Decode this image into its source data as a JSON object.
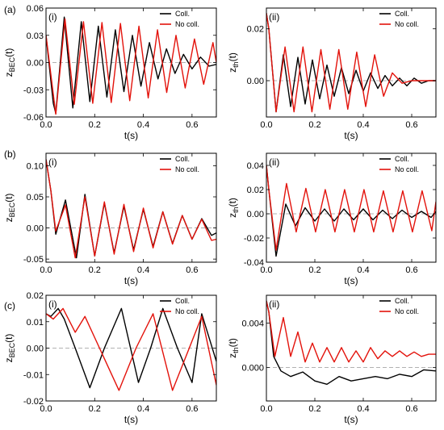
{
  "figure": {
    "row_labels": [
      "(a)",
      "(b)",
      "(c)"
    ]
  },
  "chart_data": [
    {
      "type": "line",
      "row": 0,
      "col": 0,
      "panel_label": "(i)",
      "xlabel": "t(s)",
      "ylabel_main": "z",
      "ylabel_sub": "BEC",
      "ylabel_tail": "(t)",
      "xlim": [
        0,
        0.7
      ],
      "ylim": [
        -0.06,
        0.06
      ],
      "xticks": [
        0.0,
        0.2,
        0.4,
        0.6
      ],
      "xtick_labels": [
        "0.0",
        "0.2",
        "0.4",
        "0.6"
      ],
      "yticks": [
        -0.06,
        -0.03,
        0.0,
        0.03,
        0.06
      ],
      "ytick_labels": [
        "-0.06",
        "-0.03",
        "0.00",
        "0.03",
        "0.06"
      ],
      "legend": [
        "Coll.",
        "No coll."
      ],
      "legend_position": "top-right",
      "series": [
        {
          "name": "Coll.",
          "color": "#000000",
          "x": [
            0.0,
            0.03,
            0.04,
            0.075,
            0.11,
            0.145,
            0.18,
            0.215,
            0.25,
            0.285,
            0.32,
            0.355,
            0.39,
            0.425,
            0.46,
            0.495,
            0.53,
            0.565,
            0.6,
            0.635,
            0.67,
            0.7
          ],
          "y": [
            0.03,
            -0.045,
            -0.056,
            0.05,
            -0.05,
            0.045,
            -0.043,
            0.04,
            -0.038,
            0.036,
            -0.032,
            0.03,
            -0.026,
            0.022,
            -0.018,
            0.015,
            -0.012,
            0.009,
            -0.007,
            0.006,
            -0.004,
            -0.002
          ]
        },
        {
          "name": "No coll.",
          "color": "#e3120b",
          "x": [
            0.0,
            0.04,
            0.078,
            0.116,
            0.154,
            0.192,
            0.23,
            0.268,
            0.306,
            0.344,
            0.382,
            0.42,
            0.458,
            0.496,
            0.534,
            0.572,
            0.61,
            0.648,
            0.686,
            0.7
          ],
          "y": [
            0.03,
            -0.057,
            0.048,
            -0.046,
            0.045,
            -0.045,
            0.044,
            -0.044,
            0.043,
            -0.042,
            0.04,
            -0.039,
            0.036,
            -0.033,
            0.03,
            -0.028,
            0.026,
            -0.024,
            0.022,
            0.0
          ]
        }
      ]
    },
    {
      "type": "line",
      "row": 0,
      "col": 1,
      "panel_label": "(ii)",
      "xlabel": "t(s)",
      "ylabel_main": "z",
      "ylabel_sub": "th",
      "ylabel_tail": "(t)",
      "xlim": [
        0,
        0.7
      ],
      "ylim": [
        -0.014,
        0.028
      ],
      "xticks": [
        0.0,
        0.2,
        0.4,
        0.6
      ],
      "xtick_labels": [
        "0.0",
        "0.2",
        "0.4",
        "0.6"
      ],
      "yticks": [
        0.0,
        0.02
      ],
      "ytick_labels": [
        "0.00",
        "0.02"
      ],
      "legend": [
        "Coll.",
        "No coll."
      ],
      "legend_position": "top-right",
      "series": [
        {
          "name": "Coll.",
          "color": "#000000",
          "x": [
            0.0,
            0.01,
            0.04,
            0.07,
            0.1,
            0.13,
            0.16,
            0.19,
            0.22,
            0.25,
            0.28,
            0.31,
            0.34,
            0.37,
            0.4,
            0.43,
            0.46,
            0.49,
            0.52,
            0.55,
            0.58,
            0.61,
            0.64,
            0.67,
            0.7
          ],
          "y": [
            0.026,
            0.02,
            -0.012,
            0.01,
            -0.01,
            0.009,
            -0.009,
            0.008,
            -0.007,
            0.006,
            -0.006,
            0.005,
            -0.005,
            0.004,
            -0.004,
            0.003,
            -0.003,
            0.002,
            -0.002,
            0.001,
            -0.002,
            0.001,
            -0.001,
            0.0,
            0.0
          ]
        },
        {
          "name": "No coll.",
          "color": "#e3120b",
          "x": [
            0.0,
            0.01,
            0.04,
            0.077,
            0.114,
            0.151,
            0.188,
            0.225,
            0.262,
            0.299,
            0.336,
            0.373,
            0.41,
            0.447,
            0.484,
            0.52,
            0.56,
            0.6,
            0.64,
            0.68,
            0.7
          ],
          "y": [
            0.026,
            0.02,
            -0.012,
            0.013,
            -0.012,
            0.013,
            -0.012,
            0.012,
            -0.011,
            0.012,
            -0.011,
            0.011,
            -0.01,
            0.01,
            -0.006,
            0.003,
            -0.001,
            0.0,
            0.0,
            0.0,
            0.0
          ]
        }
      ]
    },
    {
      "type": "line",
      "row": 1,
      "col": 0,
      "panel_label": "(i)",
      "xlabel": "t(s)",
      "ylabel_main": "z",
      "ylabel_sub": "BEC",
      "ylabel_tail": "(t)",
      "xlim": [
        0,
        0.7
      ],
      "ylim": [
        -0.055,
        0.12
      ],
      "xticks": [
        0.0,
        0.2,
        0.4,
        0.6
      ],
      "xtick_labels": [
        "0.0",
        "0.2",
        "0.4",
        "0.6"
      ],
      "yticks": [
        -0.05,
        0.0,
        0.05,
        0.1
      ],
      "ytick_labels": [
        "-0.05",
        "0.00",
        "0.05",
        "0.10"
      ],
      "legend": [
        "Coll.",
        "No coll."
      ],
      "legend_position": "top-right",
      "series": [
        {
          "name": "Coll.",
          "color": "#000000",
          "x": [
            0.0,
            0.02,
            0.04,
            0.08,
            0.125,
            0.16,
            0.2,
            0.24,
            0.28,
            0.32,
            0.36,
            0.4,
            0.44,
            0.48,
            0.52,
            0.56,
            0.6,
            0.64,
            0.68,
            0.7
          ],
          "y": [
            0.11,
            0.06,
            -0.01,
            0.045,
            -0.048,
            0.054,
            -0.045,
            0.04,
            -0.04,
            0.035,
            -0.035,
            0.03,
            -0.03,
            0.026,
            -0.025,
            0.02,
            -0.018,
            0.015,
            -0.012,
            -0.008
          ]
        },
        {
          "name": "No coll.",
          "color": "#e3120b",
          "x": [
            0.0,
            0.02,
            0.04,
            0.08,
            0.12,
            0.16,
            0.2,
            0.24,
            0.28,
            0.32,
            0.36,
            0.4,
            0.44,
            0.48,
            0.52,
            0.56,
            0.6,
            0.64,
            0.68,
            0.7
          ],
          "y": [
            0.11,
            0.06,
            -0.005,
            0.037,
            -0.048,
            0.05,
            -0.045,
            0.042,
            -0.042,
            0.038,
            -0.038,
            0.032,
            -0.032,
            0.026,
            -0.026,
            0.02,
            -0.018,
            0.014,
            -0.02,
            -0.018
          ]
        }
      ]
    },
    {
      "type": "line",
      "row": 1,
      "col": 1,
      "panel_label": "(ii)",
      "xlabel": "t(s)",
      "ylabel_main": "z",
      "ylabel_sub": "th",
      "ylabel_tail": "(t)",
      "xlim": [
        0,
        0.7
      ],
      "ylim": [
        -0.04,
        0.05
      ],
      "xticks": [
        0.0,
        0.2,
        0.4,
        0.6
      ],
      "xtick_labels": [
        "0.0",
        "0.2",
        "0.4",
        "0.6"
      ],
      "yticks": [
        -0.04,
        -0.02,
        0.0,
        0.02,
        0.04
      ],
      "ytick_labels": [
        "-0.04",
        "-0.02",
        "0.00",
        "0.02",
        "0.04"
      ],
      "legend": [
        "Coll.",
        "No coll."
      ],
      "legend_position": "top-right",
      "series": [
        {
          "name": "Coll.",
          "color": "#000000",
          "x": [
            0.0,
            0.01,
            0.04,
            0.08,
            0.12,
            0.16,
            0.2,
            0.24,
            0.28,
            0.32,
            0.36,
            0.4,
            0.44,
            0.48,
            0.52,
            0.56,
            0.6,
            0.64,
            0.68,
            0.7
          ],
          "y": [
            0.04,
            0.02,
            -0.035,
            0.008,
            -0.01,
            0.005,
            -0.006,
            0.004,
            -0.006,
            0.004,
            -0.005,
            0.004,
            -0.005,
            0.003,
            -0.004,
            0.003,
            -0.003,
            0.002,
            -0.003,
            0.002
          ]
        },
        {
          "name": "No coll.",
          "color": "#e3120b",
          "x": [
            0.0,
            0.01,
            0.04,
            0.083,
            0.123,
            0.163,
            0.203,
            0.243,
            0.283,
            0.323,
            0.363,
            0.403,
            0.443,
            0.483,
            0.523,
            0.563,
            0.603,
            0.643,
            0.683,
            0.7
          ],
          "y": [
            0.04,
            0.02,
            -0.03,
            0.025,
            -0.015,
            0.021,
            -0.015,
            0.02,
            -0.015,
            0.02,
            -0.015,
            0.02,
            -0.015,
            0.019,
            -0.015,
            0.019,
            -0.015,
            0.019,
            -0.014,
            0.01
          ]
        }
      ]
    },
    {
      "type": "line",
      "row": 2,
      "col": 0,
      "panel_label": "(i)",
      "xlabel": "t(s)",
      "ylabel_main": "z",
      "ylabel_sub": "BEC",
      "ylabel_tail": "(t)",
      "xlim": [
        0,
        0.7
      ],
      "ylim": [
        -0.02,
        0.02
      ],
      "xticks": [
        0.0,
        0.2,
        0.4,
        0.6
      ],
      "xtick_labels": [
        "0.0",
        "0.2",
        "0.4",
        "0.6"
      ],
      "yticks": [
        -0.02,
        -0.01,
        0.0,
        0.01,
        0.02
      ],
      "ytick_labels": [
        "-0.02",
        "-0.01",
        "0.00",
        "0.01",
        "0.02"
      ],
      "legend": [
        "Coll.",
        "No coll."
      ],
      "legend_position": "top-right",
      "series": [
        {
          "name": "Coll.",
          "color": "#000000",
          "x": [
            0.0,
            0.02,
            0.05,
            0.075,
            0.12,
            0.18,
            0.24,
            0.31,
            0.38,
            0.43,
            0.48,
            0.54,
            0.6,
            0.64,
            0.7
          ],
          "y": [
            0.013,
            0.012,
            0.015,
            0.011,
            0.0,
            -0.015,
            0.0,
            0.015,
            -0.013,
            0.0,
            0.015,
            0.0,
            -0.013,
            0.013,
            -0.005
          ]
        },
        {
          "name": "No coll.",
          "color": "#e3120b",
          "x": [
            0.0,
            0.03,
            0.07,
            0.12,
            0.16,
            0.22,
            0.3,
            0.37,
            0.44,
            0.52,
            0.58,
            0.64,
            0.7
          ],
          "y": [
            0.013,
            0.011,
            0.015,
            0.006,
            0.012,
            0.0,
            -0.016,
            0.0,
            0.013,
            -0.016,
            -0.002,
            0.012,
            -0.014
          ]
        }
      ]
    },
    {
      "type": "line",
      "row": 2,
      "col": 1,
      "panel_label": "(ii)",
      "xlabel": "t(s)",
      "ylabel_main": "z",
      "ylabel_sub": "th",
      "ylabel_tail": "(t)",
      "xlim": [
        0,
        0.7
      ],
      "ylim": [
        -0.003,
        0.0065
      ],
      "xticks": [
        0.0,
        0.2,
        0.4,
        0.6
      ],
      "xtick_labels": [
        "0.0",
        "0.2",
        "0.4",
        "0.6"
      ],
      "yticks": [
        0.0,
        0.004
      ],
      "ytick_labels": [
        "0.000",
        "0.004"
      ],
      "legend": [
        "Coll.",
        "No coll."
      ],
      "legend_position": "top-right",
      "series": [
        {
          "name": "Coll.",
          "color": "#000000",
          "x": [
            0.0,
            0.01,
            0.03,
            0.06,
            0.1,
            0.15,
            0.2,
            0.25,
            0.3,
            0.35,
            0.4,
            0.45,
            0.5,
            0.55,
            0.6,
            0.65,
            0.7
          ],
          "y": [
            0.006,
            0.005,
            0.001,
            -0.0003,
            -0.0008,
            -0.0004,
            -0.0012,
            -0.0015,
            -0.0008,
            -0.0012,
            -0.001,
            -0.0008,
            -0.001,
            -0.0006,
            -0.0008,
            -0.0002,
            -0.0003
          ]
        },
        {
          "name": "No coll.",
          "color": "#e3120b",
          "x": [
            0.0,
            0.01,
            0.035,
            0.07,
            0.1,
            0.13,
            0.16,
            0.19,
            0.22,
            0.25,
            0.28,
            0.31,
            0.34,
            0.37,
            0.4,
            0.43,
            0.46,
            0.49,
            0.52,
            0.55,
            0.58,
            0.61,
            0.64,
            0.67,
            0.7
          ],
          "y": [
            0.006,
            0.005,
            0.001,
            0.0045,
            0.001,
            0.0032,
            0.0005,
            0.0022,
            0.0005,
            0.0018,
            0.0005,
            0.0018,
            0.0005,
            0.0015,
            0.0005,
            0.0018,
            0.0008,
            0.0015,
            0.001,
            0.0015,
            0.001,
            0.0014,
            0.001,
            0.0012,
            0.0012
          ]
        }
      ]
    }
  ]
}
